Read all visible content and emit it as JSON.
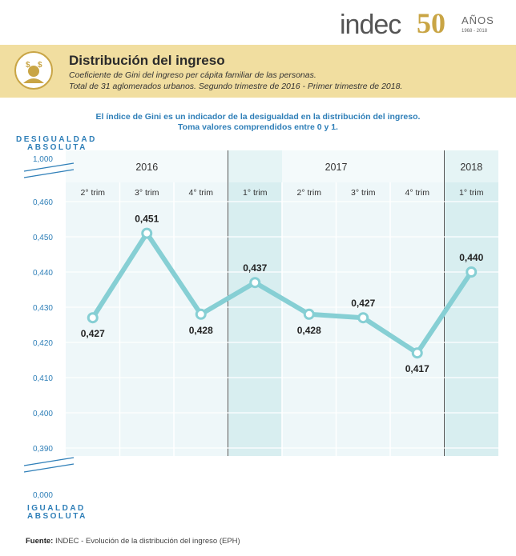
{
  "brand": {
    "logo_text": "indec",
    "anniversary_number": "50",
    "anniversary_word": "AÑOS",
    "anniversary_years": "1968 - 2018",
    "gold_color": "#c9a545"
  },
  "header": {
    "title": "Distribución del ingreso",
    "subtitle_line1": "Coeficiente de Gini del ingreso per cápita familiar de las personas.",
    "subtitle_line2": "Total de 31 aglomerados urbanos. Segundo trimestre de 2016 - Primer trimestre de 2018.",
    "icon": "income-distribution-person-icon",
    "banner_color": "#f1dea0"
  },
  "note": {
    "line1": "El índice de Gini es un indicador de la desigualdad en la distribución del ingreso.",
    "line2": "Toma valores comprendidos entre 0 y 1."
  },
  "chart_data": {
    "type": "line",
    "top_label_line1": "DESIGUALDAD",
    "top_label_line2": "ABSOLUTA",
    "bottom_label_line1": "IGUALDAD",
    "bottom_label_line2": "ABSOLUTA",
    "max_label": "1,000",
    "min_label": "0,000",
    "axis_break": true,
    "years": [
      {
        "label": "2016",
        "span": 3
      },
      {
        "label": "2017",
        "span": 4
      },
      {
        "label": "2018",
        "span": 1
      }
    ],
    "categories": [
      "2° trim",
      "3° trim",
      "4° trim",
      "1° trim",
      "2° trim",
      "3° trim",
      "4° trim",
      "1° trim"
    ],
    "highlighted_categories": [
      3,
      7
    ],
    "values": [
      0.427,
      0.451,
      0.428,
      0.437,
      0.428,
      0.427,
      0.417,
      0.44
    ],
    "value_labels": [
      "0,427",
      "0,451",
      "0,428",
      "0,437",
      "0,428",
      "0,427",
      "0,417",
      "0,440"
    ],
    "label_positions": [
      "below",
      "above",
      "below",
      "above",
      "below",
      "above",
      "below",
      "above"
    ],
    "ylim": [
      0.39,
      0.46
    ],
    "yticks": [
      0.46,
      0.45,
      0.44,
      0.43,
      0.42,
      0.41,
      0.4,
      0.39
    ],
    "ytick_labels": [
      "0,460",
      "0,450",
      "0,440",
      "0,430",
      "0,420",
      "0,410",
      "0,400",
      "0,390"
    ],
    "grid": true,
    "line_color": "#86cfd4",
    "axis_label_color": "#2f7fb8"
  },
  "source": {
    "label": "Fuente:",
    "text": "INDEC - Evolución de la distribución del ingreso (EPH)"
  }
}
